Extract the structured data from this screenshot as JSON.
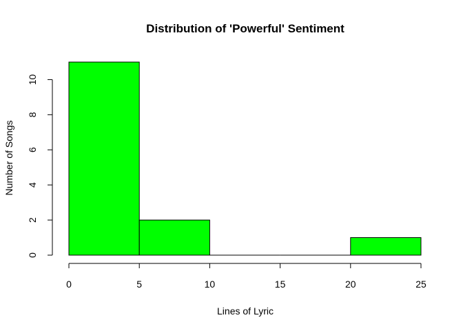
{
  "chart_data": {
    "type": "bar",
    "title": "Distribution of 'Powerful' Sentiment",
    "xlabel": "Lines of Lyric",
    "ylabel": "Number of Songs",
    "bins": [
      {
        "from": 0,
        "to": 5,
        "count": 11
      },
      {
        "from": 5,
        "to": 10,
        "count": 2
      },
      {
        "from": 10,
        "to": 15,
        "count": 0
      },
      {
        "from": 15,
        "to": 20,
        "count": 0
      },
      {
        "from": 20,
        "to": 25,
        "count": 1
      }
    ],
    "xlim": [
      0,
      25
    ],
    "ylim": [
      0,
      11
    ],
    "xticks": [
      "0",
      "5",
      "10",
      "15",
      "20",
      "25"
    ],
    "yticks": [
      "0",
      "2",
      "4",
      "6",
      "8",
      "10"
    ],
    "bar_color": "#00ff00",
    "grid": false,
    "legend": "none"
  }
}
